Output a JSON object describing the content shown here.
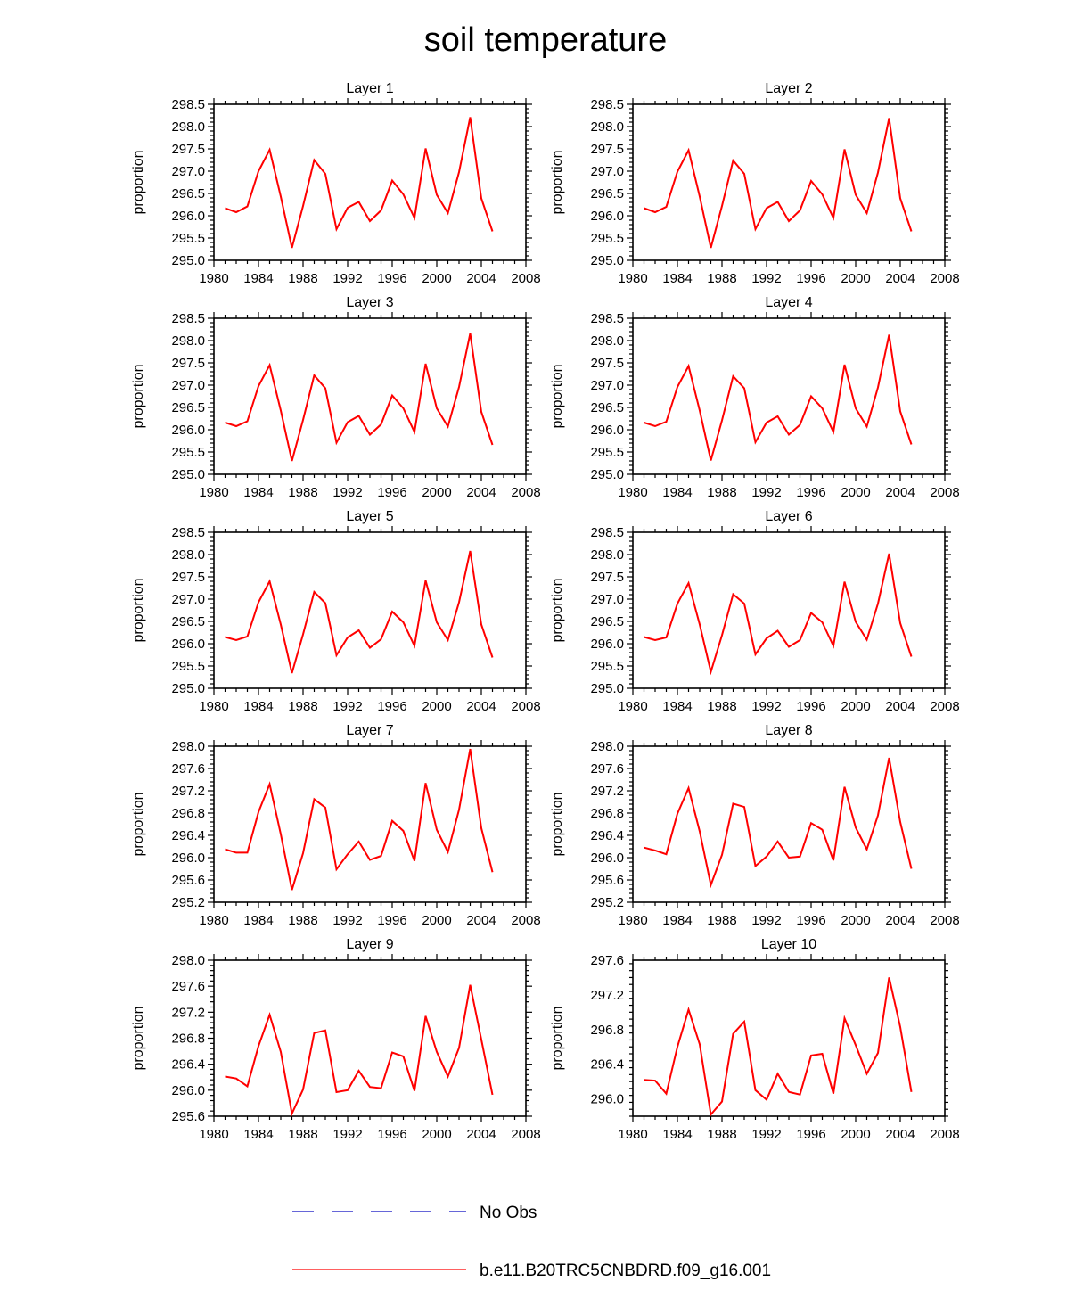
{
  "title": "soil temperature",
  "colors": {
    "model": "#ff0000",
    "obs": "#3333cc",
    "axis": "#000000"
  },
  "legend": {
    "items": [
      {
        "label": "No Obs",
        "style": "dashed",
        "color": "#3333cc"
      },
      {
        "label": "b.e11.B20TRC5CNBDRD.f09_g16.001",
        "style": "solid",
        "color": "#ff0000"
      }
    ]
  },
  "chart_data": [
    {
      "type": "line",
      "title": "Layer 1",
      "ylabel": "proportion",
      "xlim": [
        1980,
        2008
      ],
      "xticks": [
        1980,
        1984,
        1988,
        1992,
        1996,
        2000,
        2004,
        2008
      ],
      "ylim": [
        295.0,
        298.5
      ],
      "yticks": [
        295.0,
        295.5,
        296.0,
        296.5,
        297.0,
        297.5,
        298.0,
        298.5
      ],
      "ytick_format": 1,
      "x": [
        1981,
        1982,
        1983,
        1984,
        1985,
        1986,
        1987,
        1988,
        1989,
        1990,
        1991,
        1992,
        1993,
        1994,
        1995,
        1996,
        1997,
        1998,
        1999,
        2000,
        2001,
        2002,
        2003,
        2004,
        2005
      ],
      "series": [
        {
          "values": [
            296.17,
            296.08,
            296.21,
            297.0,
            297.48,
            296.43,
            295.28,
            296.22,
            297.25,
            296.94,
            295.7,
            296.18,
            296.31,
            295.88,
            296.12,
            296.79,
            296.48,
            295.95,
            297.51,
            296.47,
            296.06,
            296.98,
            298.21,
            296.39,
            295.65
          ]
        }
      ]
    },
    {
      "type": "line",
      "title": "Layer 2",
      "ylabel": "proportion",
      "xlim": [
        1980,
        2008
      ],
      "xticks": [
        1980,
        1984,
        1988,
        1992,
        1996,
        2000,
        2004,
        2008
      ],
      "ylim": [
        295.0,
        298.5
      ],
      "yticks": [
        295.0,
        295.5,
        296.0,
        296.5,
        297.0,
        297.5,
        298.0,
        298.5
      ],
      "ytick_format": 1,
      "x": [
        1981,
        1982,
        1983,
        1984,
        1985,
        1986,
        1987,
        1988,
        1989,
        1990,
        1991,
        1992,
        1993,
        1994,
        1995,
        1996,
        1997,
        1998,
        1999,
        2000,
        2001,
        2002,
        2003,
        2004,
        2005
      ],
      "series": [
        {
          "values": [
            296.17,
            296.08,
            296.2,
            296.99,
            297.47,
            296.43,
            295.28,
            296.22,
            297.24,
            296.94,
            295.7,
            296.17,
            296.31,
            295.88,
            296.12,
            296.78,
            296.48,
            295.95,
            297.49,
            296.47,
            296.06,
            296.97,
            298.19,
            296.39,
            295.65
          ]
        }
      ]
    },
    {
      "type": "line",
      "title": "Layer 3",
      "ylabel": "proportion",
      "xlim": [
        1980,
        2008
      ],
      "xticks": [
        1980,
        1984,
        1988,
        1992,
        1996,
        2000,
        2004,
        2008
      ],
      "ylim": [
        295.0,
        298.5
      ],
      "yticks": [
        295.0,
        295.5,
        296.0,
        296.5,
        297.0,
        297.5,
        298.0,
        298.5
      ],
      "ytick_format": 1,
      "x": [
        1981,
        1982,
        1983,
        1984,
        1985,
        1986,
        1987,
        1988,
        1989,
        1990,
        1991,
        1992,
        1993,
        1994,
        1995,
        1996,
        1997,
        1998,
        1999,
        2000,
        2001,
        2002,
        2003,
        2004,
        2005
      ],
      "series": [
        {
          "values": [
            296.16,
            296.08,
            296.19,
            296.98,
            297.45,
            296.43,
            295.3,
            296.22,
            297.22,
            296.93,
            295.71,
            296.17,
            296.31,
            295.89,
            296.12,
            296.77,
            296.48,
            295.95,
            297.48,
            296.48,
            296.07,
            296.96,
            298.16,
            296.4,
            295.66
          ]
        }
      ]
    },
    {
      "type": "line",
      "title": "Layer 4",
      "ylabel": "proportion",
      "xlim": [
        1980,
        2008
      ],
      "xticks": [
        1980,
        1984,
        1988,
        1992,
        1996,
        2000,
        2004,
        2008
      ],
      "ylim": [
        295.0,
        298.5
      ],
      "yticks": [
        295.0,
        295.5,
        296.0,
        296.5,
        297.0,
        297.5,
        298.0,
        298.5
      ],
      "ytick_format": 1,
      "x": [
        1981,
        1982,
        1983,
        1984,
        1985,
        1986,
        1987,
        1988,
        1989,
        1990,
        1991,
        1992,
        1993,
        1994,
        1995,
        1996,
        1997,
        1998,
        1999,
        2000,
        2001,
        2002,
        2003,
        2004,
        2005
      ],
      "series": [
        {
          "values": [
            296.16,
            296.08,
            296.18,
            296.96,
            297.43,
            296.43,
            295.31,
            296.21,
            297.2,
            296.93,
            295.72,
            296.16,
            296.3,
            295.89,
            296.11,
            296.75,
            296.48,
            295.95,
            297.46,
            296.48,
            296.07,
            296.95,
            298.13,
            296.41,
            295.67
          ]
        }
      ]
    },
    {
      "type": "line",
      "title": "Layer 5",
      "ylabel": "proportion",
      "xlim": [
        1980,
        2008
      ],
      "xticks": [
        1980,
        1984,
        1988,
        1992,
        1996,
        2000,
        2004,
        2008
      ],
      "ylim": [
        295.0,
        298.5
      ],
      "yticks": [
        295.0,
        295.5,
        296.0,
        296.5,
        297.0,
        297.5,
        298.0,
        298.5
      ],
      "ytick_format": 1,
      "x": [
        1981,
        1982,
        1983,
        1984,
        1985,
        1986,
        1987,
        1988,
        1989,
        1990,
        1991,
        1992,
        1993,
        1994,
        1995,
        1996,
        1997,
        1998,
        1999,
        2000,
        2001,
        2002,
        2003,
        2004,
        2005
      ],
      "series": [
        {
          "values": [
            296.15,
            296.08,
            296.16,
            296.93,
            297.4,
            296.43,
            295.34,
            296.21,
            297.16,
            296.91,
            295.74,
            296.14,
            296.3,
            295.91,
            296.1,
            296.72,
            296.48,
            295.95,
            297.42,
            296.48,
            296.08,
            296.93,
            298.08,
            296.43,
            295.69
          ]
        }
      ]
    },
    {
      "type": "line",
      "title": "Layer 6",
      "ylabel": "proportion",
      "xlim": [
        1980,
        2008
      ],
      "xticks": [
        1980,
        1984,
        1988,
        1992,
        1996,
        2000,
        2004,
        2008
      ],
      "ylim": [
        295.0,
        298.5
      ],
      "yticks": [
        295.0,
        295.5,
        296.0,
        296.5,
        297.0,
        297.5,
        298.0,
        298.5
      ],
      "ytick_format": 1,
      "x": [
        1981,
        1982,
        1983,
        1984,
        1985,
        1986,
        1987,
        1988,
        1989,
        1990,
        1991,
        1992,
        1993,
        1994,
        1995,
        1996,
        1997,
        1998,
        1999,
        2000,
        2001,
        2002,
        2003,
        2004,
        2005
      ],
      "series": [
        {
          "values": [
            296.15,
            296.08,
            296.14,
            296.9,
            297.36,
            296.43,
            295.37,
            296.19,
            297.11,
            296.9,
            295.76,
            296.12,
            296.29,
            295.93,
            296.08,
            296.69,
            296.48,
            295.95,
            297.39,
            296.49,
            296.09,
            296.9,
            298.02,
            296.46,
            295.71
          ]
        }
      ]
    },
    {
      "type": "line",
      "title": "Layer 7",
      "ylabel": "proportion",
      "xlim": [
        1980,
        2008
      ],
      "xticks": [
        1980,
        1984,
        1988,
        1992,
        1996,
        2000,
        2004,
        2008
      ],
      "ylim": [
        295.2,
        298.0
      ],
      "yticks": [
        295.2,
        295.6,
        296.0,
        296.4,
        296.8,
        297.2,
        297.6,
        298.0
      ],
      "ytick_format": 1,
      "x": [
        1981,
        1982,
        1983,
        1984,
        1985,
        1986,
        1987,
        1988,
        1989,
        1990,
        1991,
        1992,
        1993,
        1994,
        1995,
        1996,
        1997,
        1998,
        1999,
        2000,
        2001,
        2002,
        2003,
        2004,
        2005
      ],
      "series": [
        {
          "values": [
            296.15,
            296.09,
            296.09,
            296.82,
            297.32,
            296.42,
            295.42,
            296.08,
            297.05,
            296.9,
            295.79,
            296.06,
            296.29,
            295.96,
            296.03,
            296.66,
            296.48,
            295.94,
            297.34,
            296.5,
            296.1,
            296.86,
            297.95,
            296.53,
            295.74
          ]
        }
      ]
    },
    {
      "type": "line",
      "title": "Layer 8",
      "ylabel": "proportion",
      "xlim": [
        1980,
        2008
      ],
      "xticks": [
        1980,
        1984,
        1988,
        1992,
        1996,
        2000,
        2004,
        2008
      ],
      "ylim": [
        295.2,
        298.0
      ],
      "yticks": [
        295.2,
        295.6,
        296.0,
        296.4,
        296.8,
        297.2,
        297.6,
        298.0
      ],
      "ytick_format": 1,
      "x": [
        1981,
        1982,
        1983,
        1984,
        1985,
        1986,
        1987,
        1988,
        1989,
        1990,
        1991,
        1992,
        1993,
        1994,
        1995,
        1996,
        1997,
        1998,
        1999,
        2000,
        2001,
        2002,
        2003,
        2004,
        2005
      ],
      "series": [
        {
          "values": [
            296.18,
            296.13,
            296.06,
            296.79,
            297.25,
            296.47,
            295.51,
            296.05,
            296.97,
            296.91,
            295.85,
            296.02,
            296.29,
            296.0,
            296.02,
            296.62,
            296.5,
            295.95,
            297.27,
            296.54,
            296.15,
            296.76,
            297.79,
            296.64,
            295.8
          ]
        }
      ]
    },
    {
      "type": "line",
      "title": "Layer 9",
      "ylabel": "proportion",
      "xlim": [
        1980,
        2008
      ],
      "xticks": [
        1980,
        1984,
        1988,
        1992,
        1996,
        2000,
        2004,
        2008
      ],
      "ylim": [
        295.6,
        298.0
      ],
      "yticks": [
        295.6,
        296.0,
        296.4,
        296.8,
        297.2,
        297.6,
        298.0
      ],
      "ytick_format": 1,
      "x": [
        1981,
        1982,
        1983,
        1984,
        1985,
        1986,
        1987,
        1988,
        1989,
        1990,
        1991,
        1992,
        1993,
        1994,
        1995,
        1996,
        1997,
        1998,
        1999,
        2000,
        2001,
        2002,
        2003,
        2004,
        2005
      ],
      "series": [
        {
          "values": [
            296.21,
            296.18,
            296.06,
            296.68,
            297.16,
            296.59,
            295.64,
            296.01,
            296.88,
            296.92,
            295.97,
            296.0,
            296.3,
            296.05,
            296.03,
            296.58,
            296.52,
            295.99,
            297.14,
            296.59,
            296.21,
            296.65,
            297.62,
            296.78,
            295.93
          ]
        }
      ]
    },
    {
      "type": "line",
      "title": "Layer 10",
      "ylabel": "proportion",
      "xlim": [
        1980,
        2008
      ],
      "xticks": [
        1980,
        1984,
        1988,
        1992,
        1996,
        2000,
        2004,
        2008
      ],
      "ylim": [
        295.8,
        297.6
      ],
      "yticks": [
        296.0,
        296.4,
        296.8,
        297.2,
        297.6
      ],
      "ytick_format": 1,
      "x": [
        1981,
        1982,
        1983,
        1984,
        1985,
        1986,
        1987,
        1988,
        1989,
        1990,
        1991,
        1992,
        1993,
        1994,
        1995,
        1996,
        1997,
        1998,
        1999,
        2000,
        2001,
        2002,
        2003,
        2004,
        2005
      ],
      "series": [
        {
          "values": [
            296.22,
            296.21,
            296.06,
            296.6,
            297.03,
            296.63,
            295.82,
            295.97,
            296.75,
            296.89,
            296.1,
            295.99,
            296.29,
            296.08,
            296.05,
            296.5,
            296.52,
            296.06,
            296.93,
            296.62,
            296.29,
            296.53,
            297.4,
            296.83,
            296.08
          ]
        }
      ]
    }
  ]
}
